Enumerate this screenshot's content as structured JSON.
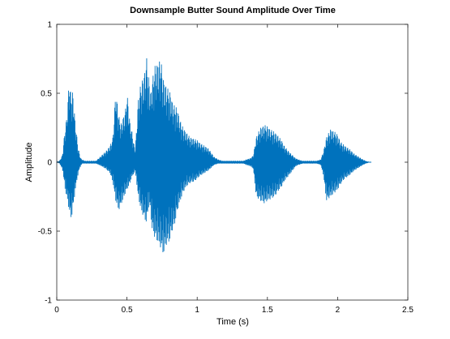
{
  "chart_data": {
    "type": "line",
    "title": "Downsample Butter Sound Amplitude Over Time",
    "xlabel": "Time (s)",
    "ylabel": "Amplitude",
    "xlim": [
      0,
      2.5
    ],
    "ylim": [
      -1,
      1
    ],
    "x_ticks": [
      0,
      0.5,
      1,
      1.5,
      2,
      2.5
    ],
    "x_tick_labels": [
      "0",
      "0.5",
      "1",
      "1.5",
      "2",
      "2.5"
    ],
    "y_ticks": [
      -1,
      -0.5,
      0,
      0.5,
      1
    ],
    "y_tick_labels": [
      "-1",
      "-0.5",
      "0",
      "0.5",
      "1"
    ],
    "grid": false,
    "line_color": "#0072BD",
    "series": [
      {
        "x": [
          0,
          0.02,
          0.04,
          0.05,
          0.06,
          0.07,
          0.08,
          0.09,
          0.1,
          0.11,
          0.12,
          0.13,
          0.14,
          0.15,
          0.16,
          0.17,
          0.18,
          0.2,
          0.22,
          0.25,
          0.28,
          0.3,
          0.32,
          0.35,
          0.38,
          0.4,
          0.42,
          0.44,
          0.45,
          0.46,
          0.47,
          0.48,
          0.49,
          0.5,
          0.51,
          0.52,
          0.53,
          0.54,
          0.55,
          0.56,
          0.58,
          0.6,
          0.62,
          0.63,
          0.64,
          0.65,
          0.66,
          0.67,
          0.68,
          0.7,
          0.72,
          0.74,
          0.76,
          0.78,
          0.8,
          0.81,
          0.82,
          0.83,
          0.84,
          0.85,
          0.86,
          0.88,
          0.9,
          0.92,
          0.95,
          0.98,
          1.0,
          1.02,
          1.05,
          1.08,
          1.1,
          1.12,
          1.15,
          1.18,
          1.2,
          1.22,
          1.25,
          1.28,
          1.3,
          1.33,
          1.35,
          1.38,
          1.4,
          1.42,
          1.45,
          1.48,
          1.5,
          1.52,
          1.55,
          1.57,
          1.6,
          1.62,
          1.65,
          1.68,
          1.7,
          1.72,
          1.75,
          1.78,
          1.8,
          1.82,
          1.85,
          1.88,
          1.9,
          1.92,
          1.95,
          1.98,
          2.0,
          2.02,
          2.05,
          2.08,
          2.1,
          2.12,
          2.15,
          2.18,
          2.2,
          2.22,
          2.24
        ],
        "y_upper": [
          0.0,
          0.01,
          0.05,
          0.15,
          0.25,
          0.32,
          0.45,
          0.64,
          0.48,
          0.52,
          0.47,
          0.3,
          0.22,
          0.12,
          0.07,
          0.03,
          0.02,
          0.01,
          0.01,
          0.01,
          0.01,
          0.03,
          0.05,
          0.08,
          0.12,
          0.18,
          0.52,
          0.35,
          0.3,
          0.28,
          0.32,
          0.34,
          0.39,
          0.5,
          0.42,
          0.3,
          0.25,
          0.2,
          0.13,
          0.1,
          0.45,
          0.58,
          0.62,
          0.68,
          0.76,
          0.65,
          0.58,
          0.5,
          0.6,
          0.7,
          0.72,
          0.75,
          0.6,
          0.55,
          0.52,
          0.5,
          0.45,
          0.42,
          0.41,
          0.4,
          0.38,
          0.3,
          0.25,
          0.22,
          0.18,
          0.17,
          0.16,
          0.14,
          0.12,
          0.1,
          0.07,
          0.04,
          0.02,
          0.01,
          0.01,
          0.01,
          0.01,
          0.01,
          0.01,
          0.01,
          0.02,
          0.03,
          0.05,
          0.18,
          0.25,
          0.27,
          0.26,
          0.24,
          0.22,
          0.2,
          0.16,
          0.12,
          0.08,
          0.05,
          0.03,
          0.02,
          0.01,
          0.01,
          0.01,
          0.01,
          0.01,
          0.02,
          0.08,
          0.18,
          0.24,
          0.22,
          0.2,
          0.15,
          0.12,
          0.1,
          0.08,
          0.06,
          0.04,
          0.02,
          0.01,
          0.0,
          0.0
        ],
        "y_lower": [
          0.0,
          -0.01,
          -0.05,
          -0.12,
          -0.2,
          -0.25,
          -0.3,
          -0.36,
          -0.41,
          -0.38,
          -0.3,
          -0.22,
          -0.15,
          -0.1,
          -0.05,
          -0.03,
          -0.01,
          -0.01,
          -0.01,
          -0.01,
          -0.01,
          -0.02,
          -0.03,
          -0.05,
          -0.08,
          -0.15,
          -0.28,
          -0.35,
          -0.33,
          -0.3,
          -0.28,
          -0.25,
          -0.22,
          -0.2,
          -0.18,
          -0.16,
          -0.12,
          -0.1,
          -0.08,
          -0.07,
          -0.25,
          -0.35,
          -0.4,
          -0.42,
          -0.45,
          -0.35,
          -0.3,
          -0.4,
          -0.5,
          -0.55,
          -0.58,
          -0.62,
          -0.67,
          -0.6,
          -0.58,
          -0.55,
          -0.5,
          -0.48,
          -0.45,
          -0.4,
          -0.35,
          -0.28,
          -0.22,
          -0.18,
          -0.15,
          -0.14,
          -0.12,
          -0.1,
          -0.08,
          -0.06,
          -0.04,
          -0.02,
          -0.01,
          -0.01,
          -0.01,
          -0.01,
          -0.01,
          -0.01,
          -0.01,
          -0.01,
          -0.02,
          -0.03,
          -0.05,
          -0.25,
          -0.28,
          -0.3,
          -0.28,
          -0.27,
          -0.25,
          -0.22,
          -0.18,
          -0.14,
          -0.1,
          -0.06,
          -0.03,
          -0.02,
          -0.01,
          -0.01,
          -0.01,
          -0.01,
          -0.01,
          -0.02,
          -0.1,
          -0.28,
          -0.25,
          -0.22,
          -0.2,
          -0.16,
          -0.12,
          -0.1,
          -0.08,
          -0.06,
          -0.04,
          -0.02,
          -0.01,
          0.0,
          0.0
        ]
      }
    ]
  }
}
